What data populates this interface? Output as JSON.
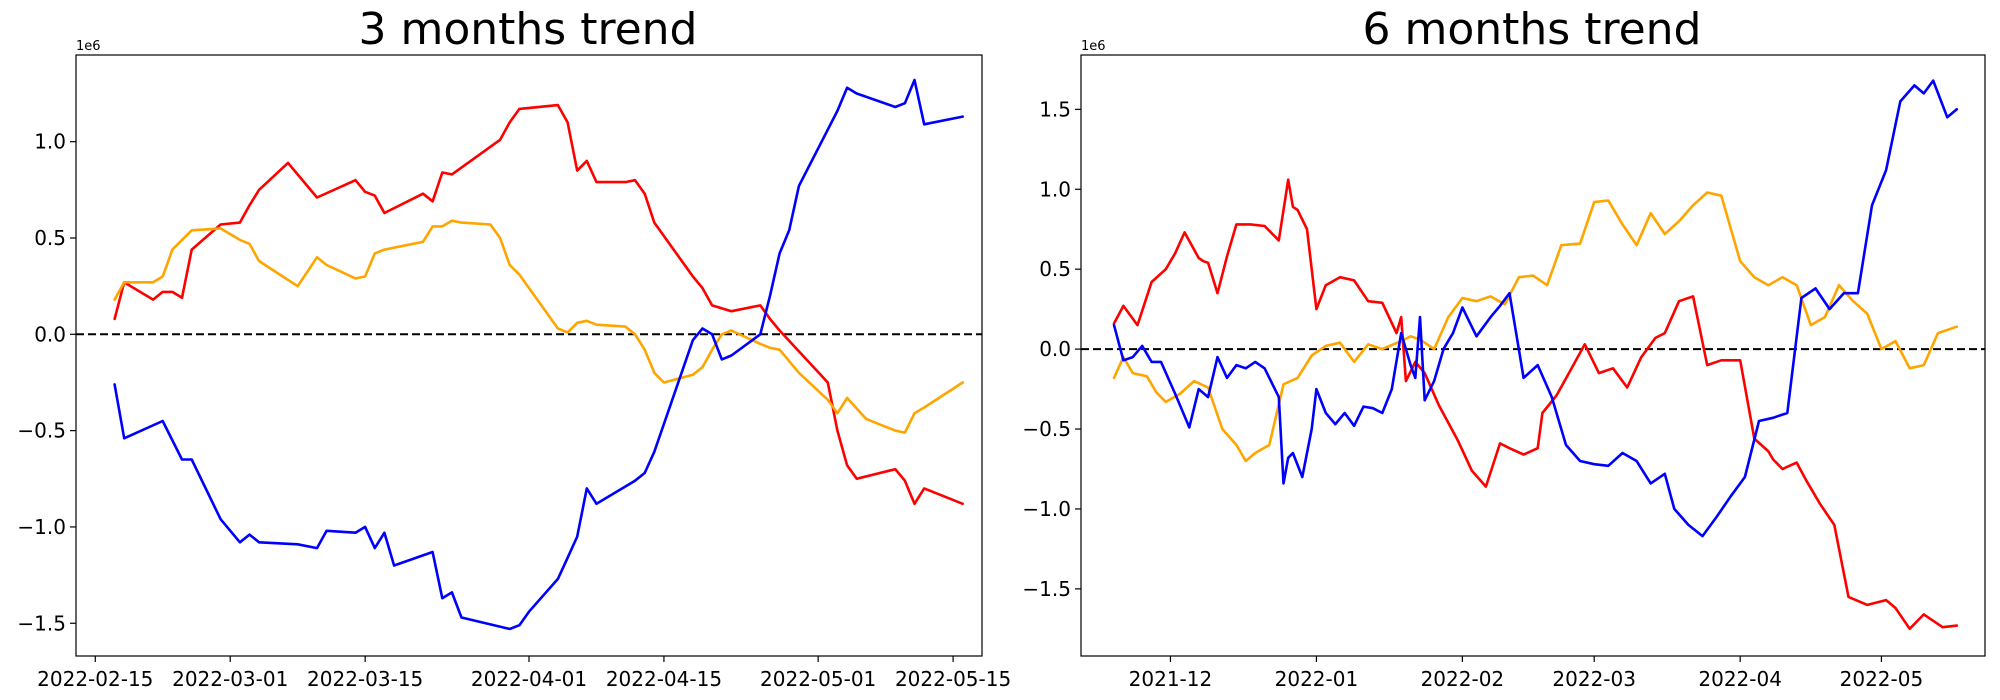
{
  "chart_data": [
    {
      "type": "line",
      "title": "3 months trend",
      "xlabel": "",
      "ylabel": "",
      "y_multiplier_label": "1e6",
      "x_range": [
        "2022-02-13",
        "2022-05-18"
      ],
      "ylim": [
        -1.67,
        1.45
      ],
      "x_ticks": [
        "2022-02-15",
        "2022-03-01",
        "2022-03-15",
        "2022-04-01",
        "2022-04-15",
        "2022-05-01",
        "2022-05-15"
      ],
      "y_ticks": [
        -1.5,
        -1.0,
        -0.5,
        0.0,
        0.5,
        1.0
      ],
      "reference_line": 0,
      "legend": "none",
      "grid": false,
      "series": [
        {
          "color": "#ff0000",
          "x": [
            "2022-02-17",
            "2022-02-18",
            "2022-02-21",
            "2022-02-22",
            "2022-02-23",
            "2022-02-24",
            "2022-02-25",
            "2022-02-28",
            "2022-03-02",
            "2022-03-03",
            "2022-03-04",
            "2022-03-07",
            "2022-03-10",
            "2022-03-14",
            "2022-03-15",
            "2022-03-16",
            "2022-03-17",
            "2022-03-21",
            "2022-03-22",
            "2022-03-23",
            "2022-03-24",
            "2022-03-29",
            "2022-03-30",
            "2022-03-31",
            "2022-04-04",
            "2022-04-05",
            "2022-04-06",
            "2022-04-07",
            "2022-04-08",
            "2022-04-11",
            "2022-04-12",
            "2022-04-13",
            "2022-04-14",
            "2022-04-18",
            "2022-04-19",
            "2022-04-20",
            "2022-04-22",
            "2022-04-25",
            "2022-04-26",
            "2022-04-27",
            "2022-05-02",
            "2022-05-03",
            "2022-05-04",
            "2022-05-05",
            "2022-05-09",
            "2022-05-10",
            "2022-05-11",
            "2022-05-12",
            "2022-05-16"
          ],
          "values": [
            0.08,
            0.27,
            0.18,
            0.22,
            0.22,
            0.19,
            0.44,
            0.57,
            0.58,
            0.67,
            0.75,
            0.89,
            0.71,
            0.8,
            0.74,
            0.72,
            0.63,
            0.73,
            0.69,
            0.84,
            0.83,
            1.01,
            1.1,
            1.17,
            1.19,
            1.1,
            0.85,
            0.9,
            0.79,
            0.79,
            0.8,
            0.73,
            0.58,
            0.3,
            0.24,
            0.15,
            0.12,
            0.15,
            0.08,
            0.02,
            -0.25,
            -0.5,
            -0.68,
            -0.75,
            -0.7,
            -0.76,
            -0.88,
            -0.8,
            -0.88
          ]
        },
        {
          "color": "#ffa500",
          "x": [
            "2022-02-17",
            "2022-02-18",
            "2022-02-21",
            "2022-02-22",
            "2022-02-23",
            "2022-02-25",
            "2022-02-28",
            "2022-03-02",
            "2022-03-03",
            "2022-03-04",
            "2022-03-08",
            "2022-03-10",
            "2022-03-11",
            "2022-03-14",
            "2022-03-15",
            "2022-03-16",
            "2022-03-17",
            "2022-03-21",
            "2022-03-22",
            "2022-03-23",
            "2022-03-24",
            "2022-03-25",
            "2022-03-28",
            "2022-03-29",
            "2022-03-30",
            "2022-03-31",
            "2022-04-04",
            "2022-04-05",
            "2022-04-06",
            "2022-04-07",
            "2022-04-08",
            "2022-04-11",
            "2022-04-12",
            "2022-04-13",
            "2022-04-14",
            "2022-04-15",
            "2022-04-18",
            "2022-04-19",
            "2022-04-20",
            "2022-04-21",
            "2022-04-22",
            "2022-04-25",
            "2022-04-26",
            "2022-04-27",
            "2022-04-29",
            "2022-05-02",
            "2022-05-03",
            "2022-05-04",
            "2022-05-06",
            "2022-05-09",
            "2022-05-10",
            "2022-05-11",
            "2022-05-12",
            "2022-05-16"
          ],
          "values": [
            0.18,
            0.27,
            0.27,
            0.3,
            0.44,
            0.54,
            0.55,
            0.49,
            0.47,
            0.38,
            0.25,
            0.4,
            0.36,
            0.29,
            0.3,
            0.42,
            0.44,
            0.48,
            0.56,
            0.56,
            0.59,
            0.58,
            0.57,
            0.5,
            0.36,
            0.31,
            0.03,
            0.01,
            0.06,
            0.07,
            0.05,
            0.04,
            0.0,
            -0.08,
            -0.2,
            -0.25,
            -0.21,
            -0.17,
            -0.08,
            0.0,
            0.02,
            -0.05,
            -0.07,
            -0.08,
            -0.2,
            -0.34,
            -0.41,
            -0.33,
            -0.44,
            -0.5,
            -0.51,
            -0.41,
            -0.38,
            -0.25
          ]
        },
        {
          "color": "#0000ff",
          "x": [
            "2022-02-17",
            "2022-02-18",
            "2022-02-22",
            "2022-02-24",
            "2022-02-25",
            "2022-02-28",
            "2022-03-02",
            "2022-03-03",
            "2022-03-04",
            "2022-03-08",
            "2022-03-10",
            "2022-03-11",
            "2022-03-14",
            "2022-03-15",
            "2022-03-16",
            "2022-03-17",
            "2022-03-18",
            "2022-03-22",
            "2022-03-23",
            "2022-03-24",
            "2022-03-25",
            "2022-03-30",
            "2022-03-31",
            "2022-04-01",
            "2022-04-04",
            "2022-04-05",
            "2022-04-06",
            "2022-04-07",
            "2022-04-08",
            "2022-04-11",
            "2022-04-12",
            "2022-04-13",
            "2022-04-14",
            "2022-04-18",
            "2022-04-19",
            "2022-04-20",
            "2022-04-21",
            "2022-04-22",
            "2022-04-25",
            "2022-04-26",
            "2022-04-27",
            "2022-04-28",
            "2022-04-29",
            "2022-05-03",
            "2022-05-04",
            "2022-05-05",
            "2022-05-09",
            "2022-05-10",
            "2022-05-11",
            "2022-05-12",
            "2022-05-16"
          ],
          "values": [
            -0.26,
            -0.54,
            -0.45,
            -0.65,
            -0.65,
            -0.96,
            -1.08,
            -1.04,
            -1.08,
            -1.09,
            -1.11,
            -1.02,
            -1.03,
            -1.0,
            -1.11,
            -1.03,
            -1.2,
            -1.13,
            -1.37,
            -1.34,
            -1.47,
            -1.53,
            -1.51,
            -1.44,
            -1.27,
            -1.16,
            -1.05,
            -0.8,
            -0.88,
            -0.79,
            -0.76,
            -0.72,
            -0.61,
            -0.03,
            0.03,
            0.0,
            -0.13,
            -0.11,
            0.0,
            0.2,
            0.42,
            0.54,
            0.77,
            1.16,
            1.28,
            1.25,
            1.18,
            1.2,
            1.32,
            1.09,
            1.13
          ]
        }
      ]
    },
    {
      "type": "line",
      "title": "6 months trend",
      "xlabel": "",
      "ylabel": "",
      "y_multiplier_label": "1e6",
      "x_range": [
        "2021-11-12",
        "2022-05-23"
      ],
      "ylim": [
        -1.92,
        1.84
      ],
      "x_ticks": [
        "2021-12",
        "2022-01",
        "2022-02",
        "2022-03",
        "2022-04",
        "2022-05"
      ],
      "y_ticks": [
        -1.5,
        -1.0,
        -0.5,
        0.0,
        0.5,
        1.0,
        1.5
      ],
      "reference_line": 0,
      "legend": "none",
      "grid": false,
      "series": [
        {
          "color": "#ff0000",
          "x": [
            "2021-11-19",
            "2021-11-21",
            "2021-11-24",
            "2021-11-27",
            "2021-11-30",
            "2021-12-02",
            "2021-12-04",
            "2021-12-07",
            "2021-12-08",
            "2021-12-09",
            "2021-12-11",
            "2021-12-13",
            "2021-12-15",
            "2021-12-18",
            "2021-12-21",
            "2021-12-24",
            "2021-12-26",
            "2021-12-27",
            "2021-12-28",
            "2021-12-30",
            "2022-01-01",
            "2022-01-03",
            "2022-01-06",
            "2022-01-09",
            "2022-01-12",
            "2022-01-15",
            "2022-01-18",
            "2022-01-19",
            "2022-01-20",
            "2022-01-22",
            "2022-01-24",
            "2022-01-27",
            "2022-01-31",
            "2022-02-03",
            "2022-02-06",
            "2022-02-09",
            "2022-02-11",
            "2022-02-14",
            "2022-02-17",
            "2022-02-18",
            "2022-02-21",
            "2022-02-24",
            "2022-02-27",
            "2022-03-02",
            "2022-03-05",
            "2022-03-08",
            "2022-03-11",
            "2022-03-14",
            "2022-03-16",
            "2022-03-19",
            "2022-03-22",
            "2022-03-25",
            "2022-03-28",
            "2022-04-01",
            "2022-04-04",
            "2022-04-07",
            "2022-04-08",
            "2022-04-10",
            "2022-04-13",
            "2022-04-15",
            "2022-04-18",
            "2022-04-21",
            "2022-04-24",
            "2022-04-28",
            "2022-05-02",
            "2022-05-04",
            "2022-05-07",
            "2022-05-10",
            "2022-05-12",
            "2022-05-14",
            "2022-05-17"
          ],
          "values": [
            0.16,
            0.27,
            0.15,
            0.42,
            0.5,
            0.6,
            0.73,
            0.57,
            0.55,
            0.54,
            0.35,
            0.58,
            0.78,
            0.78,
            0.77,
            0.68,
            1.06,
            0.89,
            0.87,
            0.75,
            0.25,
            0.4,
            0.45,
            0.43,
            0.3,
            0.29,
            0.1,
            0.2,
            -0.2,
            -0.08,
            -0.15,
            -0.35,
            -0.57,
            -0.76,
            -0.86,
            -0.59,
            -0.62,
            -0.66,
            -0.62,
            -0.4,
            -0.29,
            -0.13,
            0.03,
            -0.15,
            -0.12,
            -0.24,
            -0.05,
            0.07,
            0.1,
            0.3,
            0.33,
            -0.1,
            -0.07,
            -0.07,
            -0.56,
            -0.64,
            -0.69,
            -0.75,
            -0.71,
            -0.82,
            -0.97,
            -1.1,
            -1.55,
            -1.6,
            -1.57,
            -1.62,
            -1.75,
            -1.66,
            -1.7,
            -1.74,
            -1.73
          ]
        },
        {
          "color": "#ffa500",
          "x": [
            "2021-11-19",
            "2021-11-21",
            "2021-11-23",
            "2021-11-26",
            "2021-11-28",
            "2021-11-30",
            "2021-12-03",
            "2021-12-06",
            "2021-12-09",
            "2021-12-12",
            "2021-12-15",
            "2021-12-17",
            "2021-12-19",
            "2021-12-22",
            "2021-12-25",
            "2021-12-28",
            "2021-12-31",
            "2022-01-03",
            "2022-01-06",
            "2022-01-09",
            "2022-01-12",
            "2022-01-15",
            "2022-01-19",
            "2022-01-21",
            "2022-01-23",
            "2022-01-26",
            "2022-01-29",
            "2022-02-01",
            "2022-02-04",
            "2022-02-07",
            "2022-02-10",
            "2022-02-13",
            "2022-02-16",
            "2022-02-19",
            "2022-02-22",
            "2022-02-26",
            "2022-03-01",
            "2022-03-04",
            "2022-03-07",
            "2022-03-10",
            "2022-03-13",
            "2022-03-16",
            "2022-03-19",
            "2022-03-22",
            "2022-03-25",
            "2022-03-28",
            "2022-04-01",
            "2022-04-04",
            "2022-04-07",
            "2022-04-10",
            "2022-04-13",
            "2022-04-16",
            "2022-04-19",
            "2022-04-22",
            "2022-04-25",
            "2022-04-28",
            "2022-05-01",
            "2022-05-04",
            "2022-05-07",
            "2022-05-10",
            "2022-05-13",
            "2022-05-17"
          ],
          "values": [
            -0.18,
            -0.05,
            -0.15,
            -0.17,
            -0.27,
            -0.33,
            -0.28,
            -0.2,
            -0.24,
            -0.5,
            -0.6,
            -0.7,
            -0.65,
            -0.6,
            -0.22,
            -0.18,
            -0.04,
            0.02,
            0.04,
            -0.08,
            0.03,
            0.0,
            0.05,
            0.08,
            0.06,
            0.0,
            0.2,
            0.32,
            0.3,
            0.33,
            0.28,
            0.45,
            0.46,
            0.4,
            0.65,
            0.66,
            0.92,
            0.93,
            0.78,
            0.65,
            0.85,
            0.72,
            0.8,
            0.9,
            0.98,
            0.96,
            0.55,
            0.45,
            0.4,
            0.45,
            0.4,
            0.15,
            0.2,
            0.4,
            0.3,
            0.22,
            0.0,
            0.05,
            -0.12,
            -0.1,
            0.1,
            0.14
          ]
        },
        {
          "color": "#0000ff",
          "x": [
            "2021-11-19",
            "2021-11-21",
            "2021-11-23",
            "2021-11-25",
            "2021-11-27",
            "2021-11-29",
            "2021-12-02",
            "2021-12-05",
            "2021-12-07",
            "2021-12-09",
            "2021-12-11",
            "2021-12-13",
            "2021-12-15",
            "2021-12-17",
            "2021-12-19",
            "2021-12-21",
            "2021-12-24",
            "2021-12-25",
            "2021-12-26",
            "2021-12-27",
            "2021-12-29",
            "2021-12-31",
            "2022-01-01",
            "2022-01-03",
            "2022-01-05",
            "2022-01-07",
            "2022-01-09",
            "2022-01-11",
            "2022-01-13",
            "2022-01-15",
            "2022-01-17",
            "2022-01-19",
            "2022-01-21",
            "2022-01-22",
            "2022-01-23",
            "2022-01-24",
            "2022-01-26",
            "2022-01-27",
            "2022-01-28",
            "2022-01-30",
            "2022-02-01",
            "2022-02-04",
            "2022-02-07",
            "2022-02-09",
            "2022-02-11",
            "2022-02-14",
            "2022-02-17",
            "2022-02-20",
            "2022-02-23",
            "2022-02-26",
            "2022-03-01",
            "2022-03-04",
            "2022-03-07",
            "2022-03-10",
            "2022-03-13",
            "2022-03-16",
            "2022-03-18",
            "2022-03-21",
            "2022-03-24",
            "2022-03-27",
            "2022-03-30",
            "2022-04-02",
            "2022-04-05",
            "2022-04-08",
            "2022-04-11",
            "2022-04-14",
            "2022-04-17",
            "2022-04-20",
            "2022-04-23",
            "2022-04-26",
            "2022-04-29",
            "2022-05-02",
            "2022-05-05",
            "2022-05-08",
            "2022-05-10",
            "2022-05-12",
            "2022-05-15",
            "2022-05-17"
          ],
          "values": [
            0.15,
            -0.07,
            -0.05,
            0.02,
            -0.08,
            -0.08,
            -0.28,
            -0.49,
            -0.25,
            -0.3,
            -0.05,
            -0.18,
            -0.1,
            -0.12,
            -0.08,
            -0.12,
            -0.3,
            -0.84,
            -0.68,
            -0.65,
            -0.8,
            -0.5,
            -0.25,
            -0.4,
            -0.47,
            -0.4,
            -0.48,
            -0.36,
            -0.37,
            -0.4,
            -0.25,
            0.1,
            -0.1,
            -0.18,
            0.2,
            -0.32,
            -0.2,
            -0.1,
            0.0,
            0.1,
            0.26,
            0.08,
            0.2,
            0.27,
            0.35,
            -0.18,
            -0.1,
            -0.3,
            -0.6,
            -0.7,
            -0.72,
            -0.73,
            -0.65,
            -0.7,
            -0.84,
            -0.78,
            -1.0,
            -1.1,
            -1.17,
            -1.05,
            -0.92,
            -0.8,
            -0.45,
            -0.43,
            -0.4,
            0.32,
            0.38,
            0.25,
            0.35,
            0.35,
            0.9,
            1.12,
            1.55,
            1.65,
            1.6,
            1.68,
            1.45,
            1.5
          ]
        }
      ]
    }
  ]
}
